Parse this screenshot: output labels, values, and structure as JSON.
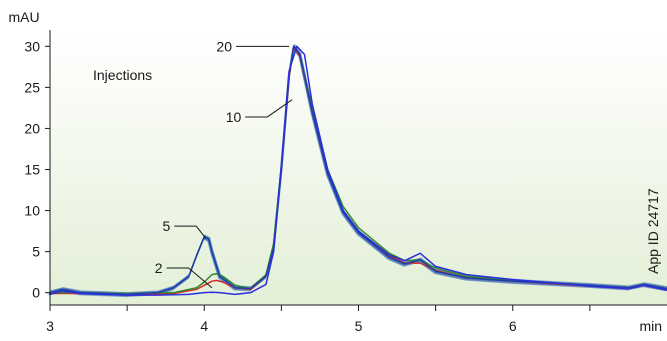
{
  "chart_data": {
    "type": "line",
    "title": "",
    "y_unit": "mAU",
    "x_unit": "min",
    "xlim": [
      3,
      7.0
    ],
    "ylim": [
      -1.5,
      31.5
    ],
    "x_ticks": [
      3,
      4,
      5,
      6
    ],
    "x_tick_labels": [
      "3",
      "4",
      "5",
      "6"
    ],
    "y_ticks": [
      0,
      5,
      10,
      15,
      20,
      25,
      30
    ],
    "y_tick_labels": [
      "0",
      "5",
      "10",
      "15",
      "20",
      "25",
      "30"
    ],
    "legend_title": "Injections",
    "id_label": "App ID 24717",
    "background_gradient": [
      "#ffffff",
      "#e3efd6"
    ],
    "series": [
      {
        "name": "2",
        "color": "#2c2ce0",
        "x": [
          3.0,
          3.08,
          3.2,
          3.5,
          3.7,
          3.9,
          4.0,
          4.05,
          4.1,
          4.2,
          4.3,
          4.4,
          4.45,
          4.5,
          4.55,
          4.6,
          4.65,
          4.7,
          4.8,
          4.9,
          5.0,
          5.2,
          5.3,
          5.4,
          5.5,
          5.7,
          6.0,
          6.5,
          6.75,
          6.85,
          7.0
        ],
        "y": [
          -0.2,
          0.2,
          -0.1,
          -0.3,
          -0.3,
          -0.2,
          0.0,
          0.05,
          0.0,
          -0.2,
          0.0,
          1.0,
          5.0,
          15.5,
          27.0,
          30.0,
          29.0,
          23.0,
          15.0,
          10.0,
          7.5,
          4.6,
          3.9,
          4.8,
          3.2,
          2.2,
          1.6,
          0.8,
          0.5,
          0.9,
          0.3
        ]
      },
      {
        "name": "5",
        "color": "#1f3fa8",
        "x": [
          3.0,
          3.08,
          3.2,
          3.5,
          3.7,
          3.8,
          3.9,
          3.95,
          4.0,
          4.03,
          4.05,
          4.1,
          4.2,
          4.3,
          4.4,
          4.45,
          4.5,
          4.55,
          4.58,
          4.62,
          4.7,
          4.8,
          4.9,
          5.0,
          5.2,
          5.3,
          5.4,
          5.5,
          5.7,
          6.0,
          6.5,
          6.75,
          6.85,
          7.0
        ],
        "y": [
          0.0,
          0.4,
          0.0,
          -0.2,
          0.0,
          0.6,
          2.0,
          4.5,
          6.8,
          6.5,
          5.0,
          2.0,
          0.6,
          0.5,
          2.0,
          5.5,
          15.0,
          26.5,
          30.0,
          29.0,
          22.0,
          14.5,
          9.8,
          7.3,
          4.3,
          3.5,
          4.0,
          2.6,
          1.8,
          1.4,
          0.9,
          0.6,
          1.0,
          0.5
        ]
      },
      {
        "name": "10",
        "color": "#2e8a2e",
        "x": [
          3.0,
          3.2,
          3.5,
          3.8,
          3.95,
          4.0,
          4.05,
          4.08,
          4.12,
          4.2,
          4.3,
          4.4,
          4.45,
          4.5,
          4.55,
          4.58,
          4.62,
          4.7,
          4.8,
          4.9,
          5.0,
          5.2,
          5.3,
          5.4,
          5.5,
          5.7,
          6.0,
          6.5,
          6.75,
          6.85,
          7.0
        ],
        "y": [
          0.0,
          0.0,
          -0.1,
          0.0,
          0.6,
          1.3,
          2.2,
          2.3,
          2.0,
          0.9,
          0.5,
          2.2,
          6.0,
          15.5,
          26.5,
          30.0,
          29.0,
          22.5,
          15.0,
          10.5,
          7.9,
          4.8,
          3.9,
          4.0,
          3.0,
          2.0,
          1.5,
          0.9,
          0.6,
          1.0,
          0.5
        ]
      },
      {
        "name": "20",
        "color": "#d42a2a",
        "x": [
          3.0,
          3.2,
          3.5,
          3.8,
          3.95,
          4.0,
          4.05,
          4.08,
          4.12,
          4.2,
          4.3,
          4.4,
          4.45,
          4.5,
          4.55,
          4.58,
          4.62,
          4.7,
          4.8,
          4.9,
          5.0,
          5.2,
          5.3,
          5.4,
          5.5,
          5.7,
          6.0,
          6.5,
          6.75,
          6.85,
          7.0
        ],
        "y": [
          -0.1,
          -0.1,
          -0.2,
          -0.1,
          0.4,
          0.9,
          1.4,
          1.5,
          1.3,
          0.6,
          0.4,
          2.0,
          5.8,
          15.2,
          26.2,
          29.8,
          28.8,
          22.0,
          14.5,
          10.0,
          7.5,
          4.5,
          3.6,
          3.6,
          2.7,
          1.8,
          1.4,
          0.8,
          0.5,
          0.9,
          0.4
        ]
      }
    ],
    "extra_traces": {
      "color": "#4a7ab8",
      "count": 10,
      "shift_x": 0.01,
      "shift_y": 0.5
    },
    "annotations": [
      {
        "text": "20",
        "label_pos": [
          4.18,
          30.0
        ],
        "target": [
          4.55,
          30.0
        ]
      },
      {
        "text": "10",
        "label_pos": [
          4.24,
          21.4
        ],
        "target": [
          4.57,
          23.5
        ]
      },
      {
        "text": "5",
        "label_pos": [
          3.78,
          8.1
        ],
        "target": [
          4.01,
          6.6
        ]
      },
      {
        "text": "2",
        "label_pos": [
          3.73,
          3.0
        ],
        "target": [
          4.05,
          0.6
        ]
      }
    ]
  }
}
